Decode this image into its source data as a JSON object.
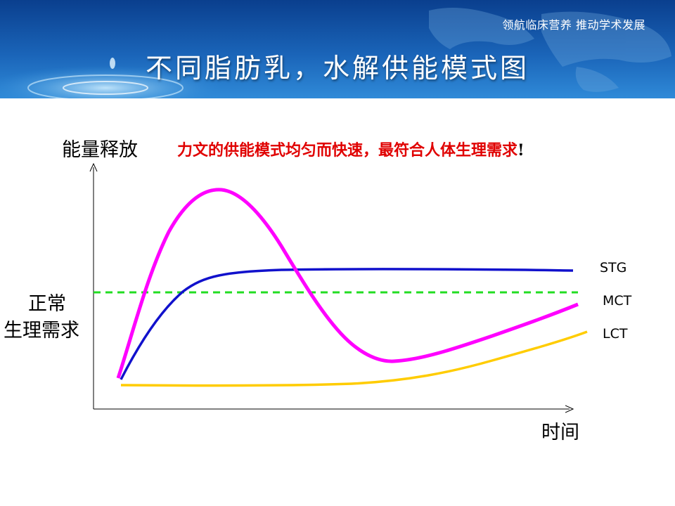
{
  "header": {
    "slogan": "领航临床营养 推动学术发展",
    "title": "不同脂肪乳，水解供能模式图"
  },
  "diagram": {
    "y_axis_label": "能量释放",
    "x_axis_label": "时间",
    "threshold_label_line1": "正常",
    "threshold_label_line2": "生理需求",
    "annotation": "力文的供能模式均匀而快速，最符合人体生理需求",
    "annotation_mark": "!",
    "curves": [
      {
        "name": "STG",
        "color": "#ff00ff"
      },
      {
        "name": "MCT",
        "color": "#1111cc"
      },
      {
        "name": "LCT",
        "color": "#ffcc00"
      }
    ],
    "threshold_color": "#22dd22"
  }
}
